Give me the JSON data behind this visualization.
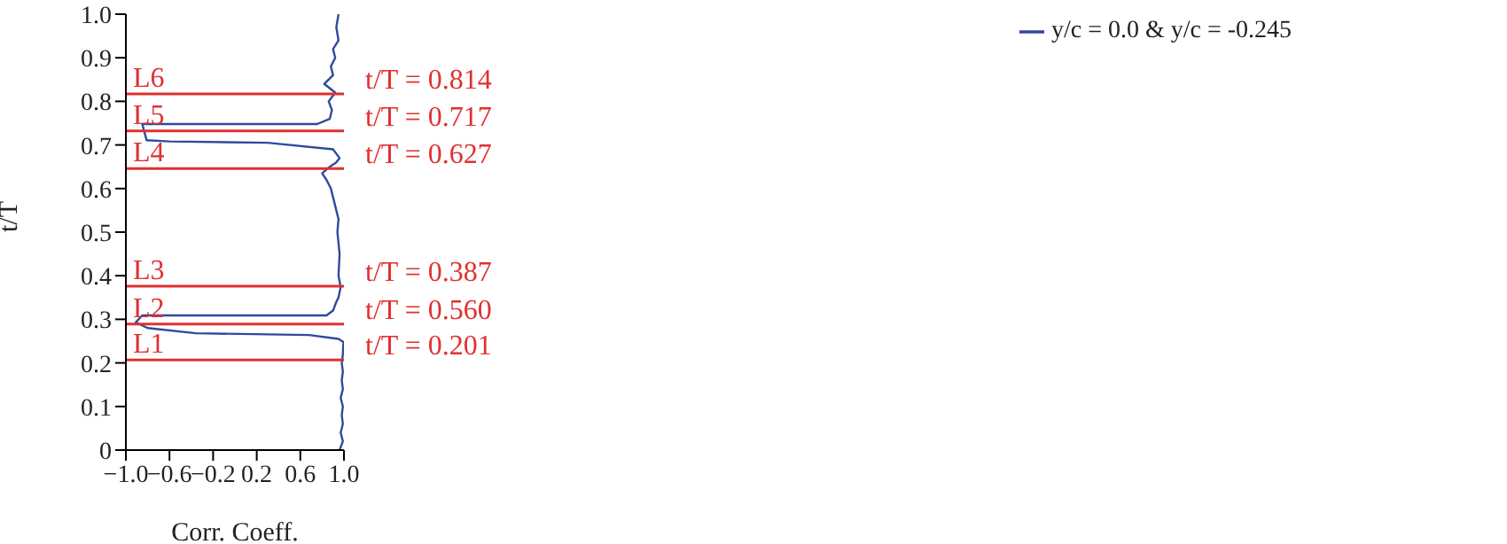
{
  "chart_data": {
    "type": "line",
    "xlabel": "Corr. Coeff.",
    "ylabel": "t/T",
    "xlim": [
      -1,
      1
    ],
    "xticks": [
      {
        "value": -1,
        "label": "−1.0"
      },
      {
        "value": -0.6,
        "label": "−0.6"
      },
      {
        "value": -0.2,
        "label": "−0.2"
      },
      0.2,
      0.6,
      {
        "value": 1,
        "label": "1.0"
      }
    ],
    "ylim": [
      0,
      1
    ],
    "yticks": [
      0,
      0.1,
      0.2,
      0.3,
      0.4,
      0.5,
      0.6,
      0.7,
      0.8,
      0.9,
      {
        "value": 1,
        "label": "1.0"
      }
    ],
    "series": [
      {
        "name": "y/c = 0.0 & y/c = -0.245",
        "color": "#2e4a9e",
        "x": [
          0.96,
          0.99,
          0.97,
          0.99,
          0.98,
          0.99,
          0.97,
          0.99,
          0.98,
          0.99,
          0.98,
          0.99,
          0.995,
          0.95,
          0.68,
          -0.36,
          -0.8,
          -0.91,
          -0.85,
          0.0,
          0.84,
          0.9,
          0.93,
          0.95,
          0.97,
          0.95,
          0.96,
          0.94,
          0.95,
          0.93,
          0.9,
          0.88,
          0.84,
          0.8,
          0.87,
          0.93,
          0.96,
          0.9,
          0.3,
          -0.6,
          -0.81,
          -0.85,
          0.2,
          0.755,
          0.87,
          0.89,
          0.86,
          0.92,
          0.82,
          0.9,
          0.88,
          0.92,
          0.9,
          0.95,
          0.93,
          0.95
        ],
        "values": [
          0.0,
          0.02,
          0.04,
          0.06,
          0.08,
          0.1,
          0.12,
          0.14,
          0.16,
          0.18,
          0.2,
          0.22,
          0.248,
          0.255,
          0.264,
          0.268,
          0.28,
          0.293,
          0.309,
          0.309,
          0.309,
          0.32,
          0.34,
          0.35,
          0.374,
          0.4,
          0.45,
          0.5,
          0.53,
          0.55,
          0.58,
          0.6,
          0.62,
          0.635,
          0.65,
          0.66,
          0.67,
          0.69,
          0.705,
          0.708,
          0.711,
          0.748,
          0.748,
          0.748,
          0.76,
          0.78,
          0.8,
          0.82,
          0.84,
          0.86,
          0.88,
          0.9,
          0.92,
          0.94,
          0.97,
          1.0
        ]
      }
    ],
    "ref_lines": [
      {
        "axis": "y",
        "value": 0.207,
        "label": "L1",
        "color": "#e03030"
      },
      {
        "axis": "y",
        "value": 0.289,
        "label": "L2",
        "color": "#e03030"
      },
      {
        "axis": "y",
        "value": 0.376,
        "label": "L3",
        "color": "#e03030"
      },
      {
        "axis": "y",
        "value": 0.646,
        "label": "L4",
        "color": "#e03030"
      },
      {
        "axis": "y",
        "value": 0.732,
        "label": "L5",
        "color": "#e03030"
      },
      {
        "axis": "y",
        "value": 0.817,
        "label": "L6",
        "color": "#e03030"
      }
    ],
    "annotations": [
      "t/T = 0.201",
      "t/T = 0.560",
      "t/T = 0.387",
      "t/T = 0.627",
      "t/T = 0.717",
      "t/T = 0.814"
    ],
    "legend": "top right",
    "grid": false,
    "marker": "none",
    "line_style": "solid"
  }
}
